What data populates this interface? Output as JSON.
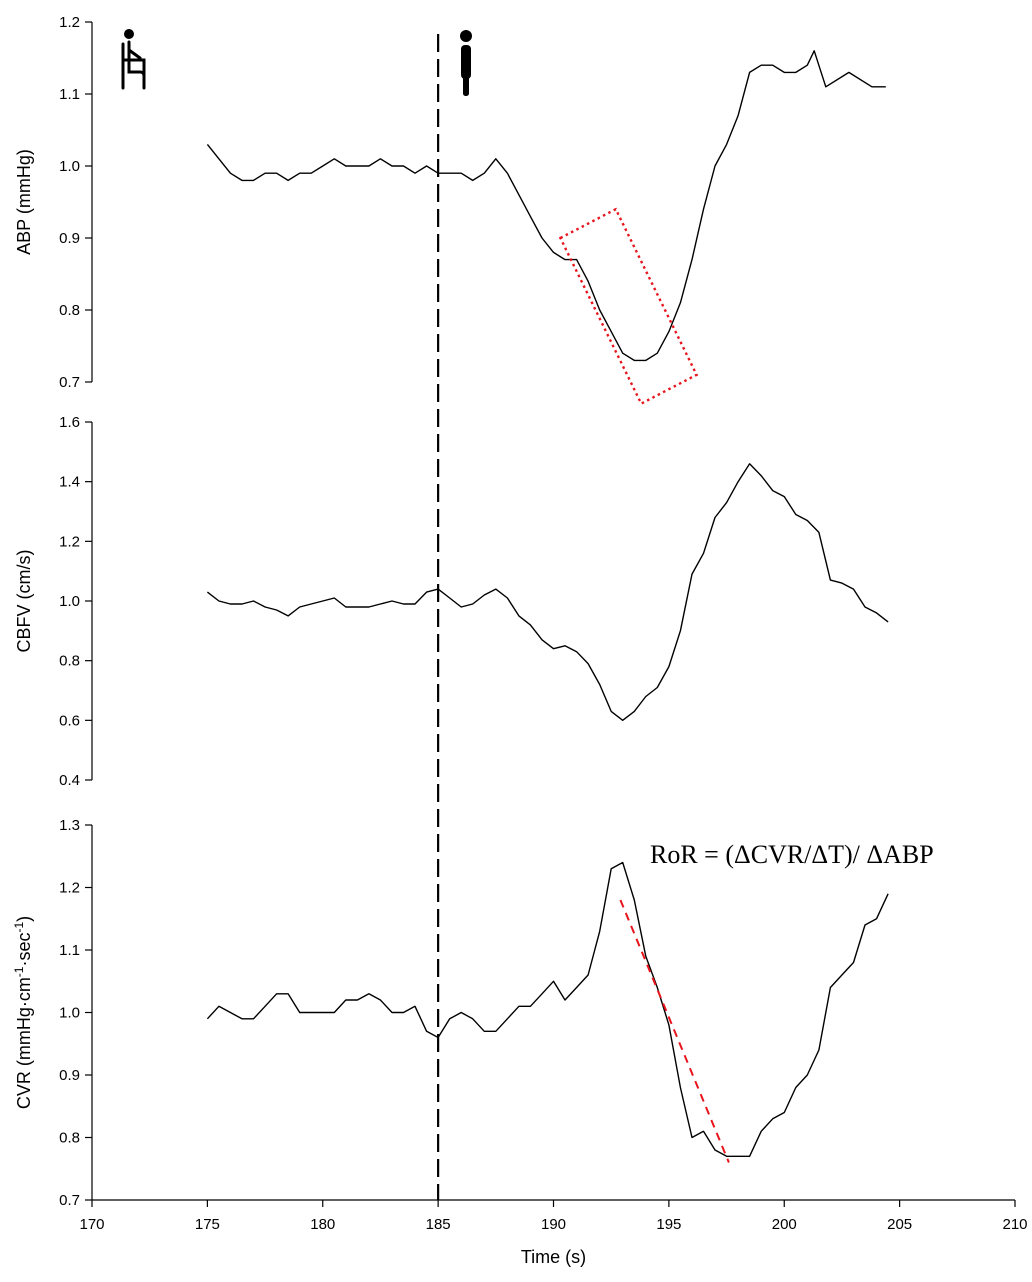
{
  "chart_data": [
    {
      "type": "line",
      "panel": "top",
      "ylabel": "ABP (mmHg)",
      "ylim": [
        0.7,
        1.2
      ],
      "yticks": [
        0.7,
        0.8,
        0.9,
        1.0,
        1.1,
        1.2
      ],
      "ytick_labels": [
        "0.7",
        "0.8",
        "0.9",
        "1.0",
        "1.1",
        "1.2"
      ],
      "xlim": [
        170,
        210
      ],
      "series": [
        {
          "color": "#000000",
          "x": [
            175,
            175.5,
            176,
            176.5,
            177,
            177.5,
            178,
            178.5,
            179,
            179.5,
            180,
            180.5,
            181,
            181.5,
            182,
            182.5,
            183,
            183.5,
            184,
            184.5,
            185,
            185.5,
            186,
            186.5,
            187,
            187.5,
            188,
            188.5,
            189,
            189.5,
            190,
            190.5,
            191,
            191.5,
            192,
            192.5,
            193,
            193.5,
            194,
            194.5,
            195,
            195.5,
            196,
            196.5,
            197,
            197.5,
            198,
            198.5,
            199,
            199.5,
            200,
            200.5,
            201,
            201.3,
            201.8,
            202.8,
            203.8,
            204.4
          ],
          "y": [
            1.03,
            1.01,
            0.99,
            0.98,
            0.98,
            0.99,
            0.99,
            0.98,
            0.99,
            0.99,
            1.0,
            1.01,
            1.0,
            1.0,
            1.0,
            1.01,
            1.0,
            1.0,
            0.99,
            1.0,
            0.99,
            0.99,
            0.99,
            0.98,
            0.99,
            1.01,
            0.99,
            0.96,
            0.93,
            0.9,
            0.88,
            0.87,
            0.87,
            0.84,
            0.8,
            0.77,
            0.74,
            0.73,
            0.73,
            0.74,
            0.77,
            0.81,
            0.87,
            0.94,
            1.0,
            1.03,
            1.07,
            1.13,
            1.14,
            1.14,
            1.13,
            1.13,
            1.14,
            1.16,
            1.11,
            1.13,
            1.11,
            1.11
          ]
        }
      ],
      "annotations": [
        {
          "type": "dotted-rectangle",
          "color": "#e8141c",
          "corners": [
            [
              190.3,
              0.9
            ],
            [
              192.7,
              0.94
            ],
            [
              196.2,
              0.71
            ],
            [
              193.8,
              0.67
            ]
          ]
        }
      ]
    },
    {
      "type": "line",
      "panel": "middle",
      "ylabel": "CBFV (cm/s)",
      "ylim": [
        0.4,
        1.6
      ],
      "yticks": [
        0.4,
        0.6,
        0.8,
        1.0,
        1.2,
        1.4,
        1.6
      ],
      "ytick_labels": [
        "0.4",
        "0.6",
        "0.8",
        "1.0",
        "1.2",
        "1.4",
        "1.6"
      ],
      "xlim": [
        170,
        210
      ],
      "series": [
        {
          "color": "#000000",
          "x": [
            175,
            175.5,
            176,
            176.5,
            177,
            177.5,
            178,
            178.5,
            179,
            179.5,
            180,
            180.5,
            181,
            181.5,
            182,
            182.5,
            183,
            183.5,
            184,
            184.5,
            185,
            185.5,
            186,
            186.5,
            187,
            187.5,
            188,
            188.5,
            189,
            189.5,
            190,
            190.5,
            191,
            191.5,
            192,
            192.5,
            193,
            193.5,
            194,
            194.5,
            195,
            195.5,
            196,
            196.5,
            197,
            197.5,
            198,
            198.5,
            199,
            199.5,
            200,
            200.5,
            201,
            201.5,
            202,
            202.5,
            203,
            203.5,
            204,
            204.5
          ],
          "y": [
            1.03,
            1.0,
            0.99,
            0.99,
            1.0,
            0.98,
            0.97,
            0.95,
            0.98,
            0.99,
            1.0,
            1.01,
            0.98,
            0.98,
            0.98,
            0.99,
            1.0,
            0.99,
            0.99,
            1.03,
            1.04,
            1.01,
            0.98,
            0.99,
            1.02,
            1.04,
            1.01,
            0.95,
            0.92,
            0.87,
            0.84,
            0.85,
            0.83,
            0.79,
            0.72,
            0.63,
            0.6,
            0.63,
            0.68,
            0.71,
            0.78,
            0.9,
            1.09,
            1.16,
            1.28,
            1.33,
            1.4,
            1.46,
            1.42,
            1.37,
            1.35,
            1.29,
            1.27,
            1.23,
            1.07,
            1.06,
            1.04,
            0.98,
            0.96,
            0.93
          ]
        }
      ]
    },
    {
      "type": "line",
      "panel": "bottom",
      "ylabel": "CVR (mmHg·cm⁻¹·sec⁻¹)",
      "ylim": [
        0.7,
        1.3
      ],
      "yticks": [
        0.7,
        0.8,
        0.9,
        1.0,
        1.1,
        1.2,
        1.3
      ],
      "ytick_labels": [
        "0.7",
        "0.8",
        "0.9",
        "1.0",
        "1.1",
        "1.2",
        "1.3"
      ],
      "xlim": [
        170,
        210
      ],
      "xticks": [
        170,
        175,
        180,
        185,
        190,
        195,
        200,
        205,
        210
      ],
      "xtick_labels": [
        "170",
        "175",
        "180",
        "185",
        "190",
        "195",
        "200",
        "205",
        "210"
      ],
      "xlabel": "Time (s)",
      "series": [
        {
          "color": "#000000",
          "x": [
            175,
            175.5,
            176,
            176.5,
            177,
            177.5,
            178,
            178.5,
            179,
            179.5,
            180,
            180.5,
            181,
            181.5,
            182,
            182.5,
            183,
            183.5,
            184,
            184.5,
            185,
            185.5,
            186,
            186.5,
            187,
            187.5,
            188,
            188.5,
            189,
            189.5,
            190,
            190.5,
            191,
            191.5,
            192,
            192.5,
            193,
            193.5,
            194,
            194.5,
            195,
            195.5,
            196,
            196.5,
            197,
            197.5,
            198,
            198.5,
            199,
            199.5,
            200,
            200.5,
            201,
            201.5,
            202,
            202.5,
            203,
            203.5,
            204,
            204.5
          ],
          "y": [
            0.99,
            1.01,
            1.0,
            0.99,
            0.99,
            1.01,
            1.03,
            1.03,
            1.0,
            1.0,
            1.0,
            1.0,
            1.02,
            1.02,
            1.03,
            1.02,
            1.0,
            1.0,
            1.01,
            0.97,
            0.96,
            0.99,
            1.0,
            0.99,
            0.97,
            0.97,
            0.99,
            1.01,
            1.01,
            1.03,
            1.05,
            1.02,
            1.04,
            1.06,
            1.13,
            1.23,
            1.24,
            1.18,
            1.09,
            1.04,
            0.98,
            0.88,
            0.8,
            0.81,
            0.78,
            0.77,
            0.77,
            0.77,
            0.81,
            0.83,
            0.84,
            0.88,
            0.9,
            0.94,
            1.04,
            1.06,
            1.08,
            1.14,
            1.15,
            1.19
          ]
        }
      ],
      "annotations": [
        {
          "type": "dashed-line",
          "color": "#e8141c",
          "from": [
            192.9,
            1.18
          ],
          "to": [
            197.6,
            0.76
          ]
        },
        {
          "type": "text",
          "text": "RoR = (ΔCVR/ΔT)/ ΔABP"
        }
      ]
    }
  ],
  "event_line": {
    "x": 185,
    "style": "long-dash",
    "color": "#000000"
  },
  "icons": {
    "sitting": "sitting-person-icon",
    "standing": "standing-person-icon"
  }
}
